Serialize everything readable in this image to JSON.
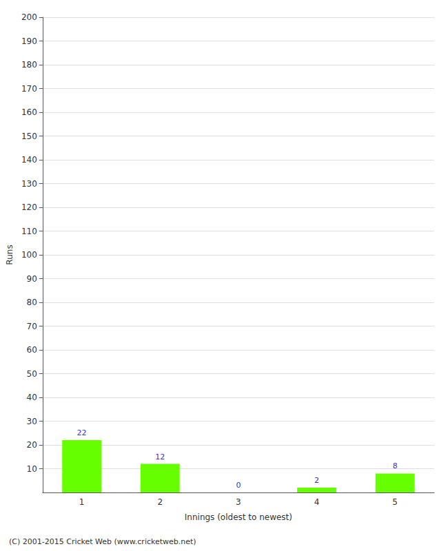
{
  "chart_data": {
    "type": "bar",
    "categories": [
      "1",
      "2",
      "3",
      "4",
      "5"
    ],
    "values": [
      22,
      12,
      0,
      2,
      8
    ],
    "color": "#66ff00",
    "xlabel": "Innings (oldest to newest)",
    "ylabel": "Runs",
    "ylim": [
      0,
      200
    ],
    "yticks": [
      10,
      20,
      30,
      40,
      50,
      60,
      70,
      80,
      90,
      100,
      110,
      120,
      130,
      140,
      150,
      160,
      170,
      180,
      190,
      200
    ],
    "grid": true,
    "data_labels": true,
    "annotations": [
      "(C) 2001-2015 Cricket Web (www.cricketweb.net)"
    ]
  }
}
